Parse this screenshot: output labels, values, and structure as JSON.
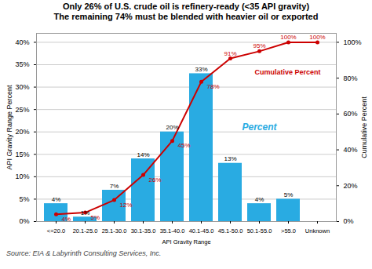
{
  "chart_data": {
    "type": "bar",
    "title": "Only 26% of U.S. crude oil is refinery-ready (<35 API gravity)",
    "subtitle": "The remaining 74% must be blended with heavier oil or exported",
    "categories": [
      "<=20.0",
      "20.1-25.0",
      "25.1-30.0",
      "30.1-35.0",
      "35.1-40.0",
      "40.1-45.0",
      "45.1-50.0",
      "50.1-55.0",
      ">55.0",
      "Unknown"
    ],
    "x_label": "API Gravity Range",
    "y_label": "API Gravity Range Percent",
    "y2_label": "Cumulative Percent",
    "ylim": [
      0,
      42
    ],
    "yticks": [
      {
        "value": 0,
        "label": "0%"
      },
      {
        "value": 5,
        "label": "5%"
      },
      {
        "value": 10,
        "label": "10%"
      },
      {
        "value": 15,
        "label": "15%"
      },
      {
        "value": 20,
        "label": "20%"
      },
      {
        "value": 25,
        "label": "25%"
      },
      {
        "value": 30,
        "label": "30%"
      },
      {
        "value": 35,
        "label": "35%"
      },
      {
        "value": 40,
        "label": "40%"
      }
    ],
    "y2lim": [
      0,
      105
    ],
    "y2ticks": [
      {
        "value": 0,
        "label": "0%"
      },
      {
        "value": 20,
        "label": "20%"
      },
      {
        "value": 40,
        "label": "40%"
      },
      {
        "value": 60,
        "label": "60%"
      },
      {
        "value": 80,
        "label": "80%"
      },
      {
        "value": 100,
        "label": "100%"
      }
    ],
    "grid": true,
    "data_labels": true,
    "series": [
      {
        "name": "Percent",
        "type": "bar",
        "color": "#29ABE2",
        "values": [
          4,
          1,
          7,
          14,
          20,
          33,
          13,
          4,
          5,
          0
        ],
        "value_labels": [
          "4%",
          "1%",
          "7%",
          "14%",
          "20%",
          "33%",
          "13%",
          "4%",
          "5%",
          null
        ]
      },
      {
        "name": "Cumulative Percent",
        "type": "line",
        "axis": "y2",
        "color": "#CC0000",
        "marker": "circle",
        "values": [
          4,
          5,
          12,
          26,
          45,
          78,
          91,
          95,
          100,
          100
        ],
        "value_labels": [
          "4%",
          "5%",
          "12%",
          "26%",
          "45%",
          "78%",
          "91%",
          "95%",
          "100%",
          "100%"
        ]
      }
    ],
    "source": "Source: EIA & Labyrinth Consulting Services, Inc."
  }
}
